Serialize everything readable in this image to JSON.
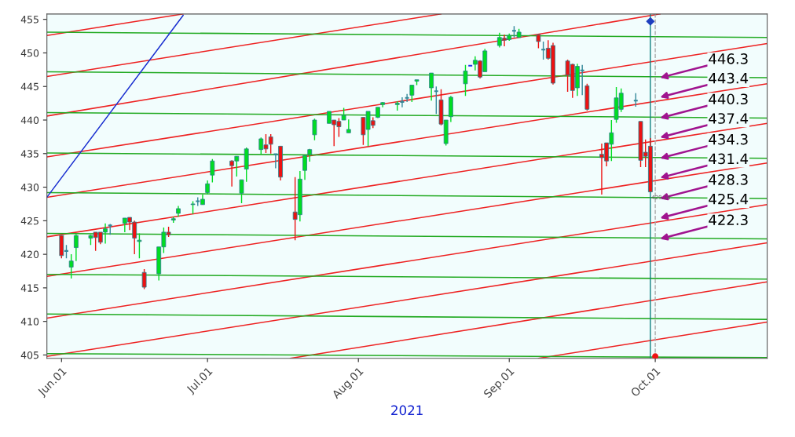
{
  "chart_data": {
    "type": "candlestick",
    "xlabel": "2021",
    "x": [
      "2021-06-01",
      "2021-06-02",
      "2021-06-03",
      "2021-06-04",
      "2021-06-07",
      "2021-06-08",
      "2021-06-09",
      "2021-06-10",
      "2021-06-11",
      "2021-06-14",
      "2021-06-15",
      "2021-06-16",
      "2021-06-17",
      "2021-06-18",
      "2021-06-21",
      "2021-06-22",
      "2021-06-23",
      "2021-06-24",
      "2021-06-25",
      "2021-06-28",
      "2021-06-29",
      "2021-06-30",
      "2021-07-01",
      "2021-07-02",
      "2021-07-06",
      "2021-07-07",
      "2021-07-08",
      "2021-07-09",
      "2021-07-12",
      "2021-07-13",
      "2021-07-14",
      "2021-07-15",
      "2021-07-16",
      "2021-07-19",
      "2021-07-20",
      "2021-07-21",
      "2021-07-22",
      "2021-07-23",
      "2021-07-26",
      "2021-07-27",
      "2021-07-28",
      "2021-07-29",
      "2021-07-30",
      "2021-08-02",
      "2021-08-03",
      "2021-08-04",
      "2021-08-05",
      "2021-08-06",
      "2021-08-09",
      "2021-08-10",
      "2021-08-11",
      "2021-08-12",
      "2021-08-13",
      "2021-08-16",
      "2021-08-17",
      "2021-08-18",
      "2021-08-19",
      "2021-08-20",
      "2021-08-23",
      "2021-08-24",
      "2021-08-25",
      "2021-08-26",
      "2021-08-27",
      "2021-08-30",
      "2021-08-31",
      "2021-09-01",
      "2021-09-02",
      "2021-09-03",
      "2021-09-07",
      "2021-09-08",
      "2021-09-09",
      "2021-09-10",
      "2021-09-13",
      "2021-09-14",
      "2021-09-15",
      "2021-09-16",
      "2021-09-17",
      "2021-09-20",
      "2021-09-21",
      "2021-09-22",
      "2021-09-23",
      "2021-09-24",
      "2021-09-27",
      "2021-09-28",
      "2021-09-29",
      "2021-09-30"
    ],
    "ohlc": [
      [
        422.8,
        422.8,
        419.4,
        419.8
      ],
      [
        420.5,
        421.4,
        419.4,
        420.5
      ],
      [
        418.1,
        420.0,
        416.4,
        419.0
      ],
      [
        421.0,
        423.0,
        419.0,
        422.8
      ],
      [
        422.4,
        422.9,
        421.4,
        422.8
      ],
      [
        423.3,
        423.3,
        420.5,
        422.5
      ],
      [
        423.3,
        423.3,
        421.5,
        421.8
      ],
      [
        423.3,
        424.6,
        421.6,
        423.8
      ],
      [
        424.3,
        424.5,
        422.9,
        424.3
      ],
      [
        424.6,
        425.4,
        423.3,
        425.4
      ],
      [
        425.5,
        425.5,
        423.6,
        424.8
      ],
      [
        424.8,
        425.0,
        420.0,
        422.4
      ],
      [
        421.9,
        423.1,
        419.4,
        422.1
      ],
      [
        417.3,
        417.8,
        414.8,
        415.1
      ],
      [
        417.1,
        421.1,
        416.1,
        421.1
      ],
      [
        421.1,
        424.0,
        420.2,
        423.3
      ],
      [
        423.3,
        424.1,
        422.6,
        422.9
      ],
      [
        425.1,
        425.6,
        424.7,
        425.3
      ],
      [
        426.1,
        427.2,
        425.6,
        426.8
      ],
      [
        427.4,
        427.9,
        426.0,
        427.5
      ],
      [
        427.9,
        428.5,
        427.2,
        427.9
      ],
      [
        427.4,
        428.9,
        427.4,
        428.2
      ],
      [
        429.2,
        431.0,
        428.9,
        430.5
      ],
      [
        431.8,
        434.2,
        430.7,
        433.9
      ],
      [
        433.9,
        434.0,
        430.1,
        433.2
      ],
      [
        433.9,
        434.6,
        431.6,
        434.6
      ],
      [
        429.1,
        431.1,
        427.6,
        431.1
      ],
      [
        432.7,
        435.9,
        430.8,
        435.7
      ],
      [
        435.6,
        437.4,
        434.9,
        437.2
      ],
      [
        436.3,
        437.9,
        435.1,
        435.7
      ],
      [
        437.5,
        437.9,
        435.0,
        436.4
      ],
      [
        434.9,
        434.9,
        432.8,
        434.9
      ],
      [
        436.1,
        436.1,
        431.0,
        431.5
      ],
      [
        426.3,
        431.5,
        422.1,
        425.2
      ],
      [
        425.9,
        432.4,
        424.9,
        431.2
      ],
      [
        432.5,
        434.7,
        431.1,
        434.7
      ],
      [
        434.9,
        435.7,
        433.8,
        435.6
      ],
      [
        437.8,
        440.2,
        437.0,
        440.0
      ],
      [
        439.5,
        441.3,
        439.5,
        441.3
      ],
      [
        440.0,
        440.0,
        436.1,
        439.3
      ],
      [
        439.8,
        440.3,
        437.5,
        439.0
      ],
      [
        440.0,
        441.8,
        440.0,
        440.7
      ],
      [
        438.1,
        440.1,
        438.1,
        438.6
      ],
      [
        440.4,
        440.4,
        436.3,
        437.8
      ],
      [
        438.6,
        441.3,
        436.1,
        441.3
      ],
      [
        439.9,
        440.4,
        438.8,
        439.2
      ],
      [
        440.4,
        441.9,
        440.3,
        441.9
      ],
      [
        442.3,
        442.7,
        441.9,
        442.6
      ],
      [
        442.3,
        442.8,
        441.4,
        442.5
      ],
      [
        442.7,
        443.4,
        441.9,
        442.7
      ],
      [
        443.3,
        443.9,
        442.7,
        443.3
      ],
      [
        443.7,
        445.2,
        442.7,
        445.2
      ],
      [
        445.8,
        446.0,
        445.2,
        446.0
      ],
      [
        444.8,
        447.0,
        442.9,
        447.0
      ],
      [
        444.3,
        445.0,
        440.9,
        444.3
      ],
      [
        443.0,
        444.6,
        439.2,
        439.4
      ],
      [
        436.5,
        440.0,
        436.2,
        440.0
      ],
      [
        440.5,
        443.6,
        439.7,
        443.4
      ],
      [
        445.4,
        448.2,
        443.6,
        447.3
      ],
      [
        448.1,
        448.1,
        448.1,
        448.1
      ],
      [
        448.3,
        449.5,
        447.4,
        448.9
      ],
      [
        448.8,
        448.9,
        446.2,
        446.4
      ],
      [
        447.2,
        450.6,
        447.2,
        450.3
      ],
      [
        451.1,
        453.0,
        450.8,
        452.3
      ],
      [
        452.2,
        452.7,
        451.0,
        451.9
      ],
      [
        452.0,
        452.9,
        451.8,
        452.6
      ],
      [
        453.3,
        454.0,
        452.3,
        453.3
      ],
      [
        452.3,
        453.6,
        452.3,
        453.1
      ],
      [
        452.7,
        452.7,
        450.7,
        451.7
      ],
      [
        450.5,
        451.7,
        449.0,
        450.5
      ],
      [
        450.7,
        451.9,
        449.0,
        449.2
      ],
      [
        451.1,
        451.5,
        445.3,
        445.5
      ],
      [
        448.8,
        449.0,
        444.2,
        446.7
      ],
      [
        448.3,
        448.4,
        443.3,
        444.4
      ],
      [
        444.8,
        448.4,
        443.6,
        448.0
      ],
      [
        447.4,
        448.2,
        443.7,
        447.4
      ],
      [
        445.1,
        445.4,
        441.4,
        441.6
      ],
      [
        434.9,
        436.5,
        428.9,
        434.4
      ],
      [
        436.6,
        436.6,
        433.1,
        433.9
      ],
      [
        436.4,
        440.0,
        433.9,
        438.1
      ],
      [
        440.1,
        444.9,
        439.6,
        443.3
      ],
      [
        441.6,
        444.7,
        441.2,
        444.0
      ],
      [
        442.9,
        444.0,
        442.0,
        442.9
      ],
      [
        439.8,
        439.8,
        433.0,
        434.0
      ],
      [
        435.2,
        437.1,
        433.0,
        434.6
      ],
      [
        436.1,
        437.3,
        429.3,
        429.3
      ]
    ],
    "colors": [
      "#ee1111",
      "#338899",
      "#00dd22",
      "#00dd22",
      "#00dd22",
      "#ee1111",
      "#ee1111",
      "#00dd22",
      "#338899",
      "#00dd22",
      "#ee1111",
      "#ee1111",
      "#00dd22",
      "#ee1111",
      "#00dd22",
      "#00dd22",
      "#ee1111",
      "#00dd22",
      "#00dd22",
      "#00dd22",
      "#338899",
      "#00dd22",
      "#00dd22",
      "#00dd22",
      "#ee1111",
      "#00dd22",
      "#00dd22",
      "#00dd22",
      "#00dd22",
      "#ee1111",
      "#ee1111",
      "#338899",
      "#ee1111",
      "#ee1111",
      "#00dd22",
      "#00dd22",
      "#00dd22",
      "#00dd22",
      "#00dd22",
      "#ee1111",
      "#ee1111",
      "#00dd22",
      "#00dd22",
      "#ee1111",
      "#00dd22",
      "#ee1111",
      "#00dd22",
      "#00dd22",
      "#00dd22",
      "#338899",
      "#338899",
      "#00dd22",
      "#00dd22",
      "#00dd22",
      "#338899",
      "#ee1111",
      "#00dd22",
      "#00dd22",
      "#00dd22",
      "#2233ee",
      "#00dd22",
      "#ee1111",
      "#00dd22",
      "#00dd22",
      "#ee1111",
      "#00dd22",
      "#338899",
      "#00dd22",
      "#ee1111",
      "#338899",
      "#ee1111",
      "#ee1111",
      "#ee1111",
      "#ee1111",
      "#00dd22",
      "#338899",
      "#ee1111",
      "#ee1111",
      "#ee1111",
      "#00dd22",
      "#00dd22",
      "#00dd22",
      "#338899",
      "#ee1111",
      "#ee1111",
      "#ee1111"
    ],
    "series": [
      {
        "type": "line",
        "color": "#ee2222",
        "x": [
          "2021-05-29",
          "2021-06-26"
        ],
        "values": [
          452.6,
          455.8
        ]
      },
      {
        "type": "line",
        "color": "#ee2222",
        "x": [
          "2021-05-29",
          "2021-08-18"
        ],
        "values": [
          446.5,
          455.8
        ]
      },
      {
        "type": "line",
        "color": "#ee2222",
        "x": [
          "2021-05-29",
          "2021-10-02"
        ],
        "values": [
          440.6,
          455.8
        ]
      },
      {
        "type": "line",
        "color": "#ee2222",
        "x": [
          "2021-05-29",
          "2021-10-24"
        ],
        "values": [
          434.5,
          451.4
        ]
      },
      {
        "type": "line",
        "color": "#ee2222",
        "x": [
          "2021-05-29",
          "2021-10-24"
        ],
        "values": [
          428.5,
          445.4
        ]
      },
      {
        "type": "line",
        "color": "#ee2222",
        "x": [
          "2021-05-29",
          "2021-10-24"
        ],
        "values": [
          422.6,
          439.5
        ]
      },
      {
        "type": "line",
        "color": "#ee2222",
        "x": [
          "2021-05-29",
          "2021-10-24"
        ],
        "values": [
          416.7,
          433.6
        ]
      },
      {
        "type": "line",
        "color": "#ee2222",
        "x": [
          "2021-05-29",
          "2021-10-24"
        ],
        "values": [
          410.5,
          427.4
        ]
      },
      {
        "type": "line",
        "color": "#ee2222",
        "x": [
          "2021-05-29",
          "2021-10-24"
        ],
        "values": [
          404.8,
          421.7
        ]
      },
      {
        "type": "line",
        "color": "#ee2222",
        "x": [
          "2021-07-18",
          "2021-10-24"
        ],
        "values": [
          404.5,
          415.9
        ]
      },
      {
        "type": "line",
        "color": "#ee2222",
        "x": [
          "2021-09-07",
          "2021-10-24"
        ],
        "values": [
          404.5,
          409.9
        ]
      },
      {
        "type": "line",
        "color": "#22aa22",
        "x": [
          "2021-05-29",
          "2021-10-24"
        ],
        "values": [
          453.1,
          452.3
        ]
      },
      {
        "type": "line",
        "color": "#22aa22",
        "x": [
          "2021-05-29",
          "2021-10-24"
        ],
        "values": [
          447.2,
          446.3
        ]
      },
      {
        "type": "line",
        "color": "#22aa22",
        "x": [
          "2021-05-29",
          "2021-10-24"
        ],
        "values": [
          441.1,
          440.3
        ]
      },
      {
        "type": "line",
        "color": "#22aa22",
        "x": [
          "2021-05-29",
          "2021-10-24"
        ],
        "values": [
          435.1,
          434.3
        ]
      },
      {
        "type": "line",
        "color": "#22aa22",
        "x": [
          "2021-05-29",
          "2021-10-24"
        ],
        "values": [
          429.2,
          428.3
        ]
      },
      {
        "type": "line",
        "color": "#22aa22",
        "x": [
          "2021-05-29",
          "2021-10-24"
        ],
        "values": [
          423.1,
          422.3
        ]
      },
      {
        "type": "line",
        "color": "#22aa22",
        "x": [
          "2021-05-29",
          "2021-10-24"
        ],
        "values": [
          417.0,
          416.3
        ]
      },
      {
        "type": "line",
        "color": "#22aa22",
        "x": [
          "2021-05-29",
          "2021-10-24"
        ],
        "values": [
          411.1,
          410.3
        ]
      },
      {
        "type": "line",
        "color": "#22aa22",
        "x": [
          "2021-05-29",
          "2021-10-24"
        ],
        "values": [
          405.2,
          404.6
        ]
      },
      {
        "type": "line",
        "color": "#1a2fd0",
        "x": [
          "2021-05-29",
          "2021-06-26"
        ],
        "values": [
          428.5,
          455.6
        ]
      },
      {
        "type": "scatter",
        "color": "#1f3fbf",
        "marker": "diamond",
        "x": [
          "2021-09-30"
        ],
        "values": [
          454.7
        ]
      },
      {
        "type": "scatter",
        "color": "#ee1111",
        "marker": "circle",
        "x": [
          "2021-10-01"
        ],
        "values": [
          404.8
        ]
      }
    ],
    "ref_lines": [
      {
        "axis": "x",
        "value": "2021-09-30",
        "color": "#108080"
      },
      {
        "axis": "x",
        "value": "2021-10-01",
        "color": "#aaaaaa",
        "line_style": "dashed"
      }
    ],
    "annotations": [
      {
        "text": "446.3",
        "x": "2021-10-02",
        "y": 446.3
      },
      {
        "text": "443.4",
        "x": "2021-10-02",
        "y": 443.4
      },
      {
        "text": "440.3",
        "x": "2021-10-02",
        "y": 440.3
      },
      {
        "text": "437.4",
        "x": "2021-10-02",
        "y": 437.4
      },
      {
        "text": "434.3",
        "x": "2021-10-02",
        "y": 434.3
      },
      {
        "text": "431.4",
        "x": "2021-10-02",
        "y": 431.4
      },
      {
        "text": "428.3",
        "x": "2021-10-02",
        "y": 428.3
      },
      {
        "text": "425.4",
        "x": "2021-10-02",
        "y": 425.4
      },
      {
        "text": "422.3",
        "x": "2021-10-02",
        "y": 422.3
      },
      {
        "text": "429.14",
        "x": "2021-09-30",
        "y": 429.14
      }
    ],
    "xlim": [
      "2021-05-29",
      "2021-10-24"
    ],
    "xticks": [
      {
        "value": "2021-06-01",
        "label": "Jun.01"
      },
      {
        "value": "2021-07-01",
        "label": "Jul.01"
      },
      {
        "value": "2021-08-01",
        "label": "Aug.01"
      },
      {
        "value": "2021-09-01",
        "label": "Sep.01"
      },
      {
        "value": "2021-10-01",
        "label": "Oct.01"
      }
    ],
    "ylim": [
      404.5,
      455.8
    ],
    "yticks": [
      405,
      410,
      415,
      420,
      425,
      430,
      435,
      440,
      445,
      450,
      455
    ],
    "grid": false,
    "legend": false
  }
}
